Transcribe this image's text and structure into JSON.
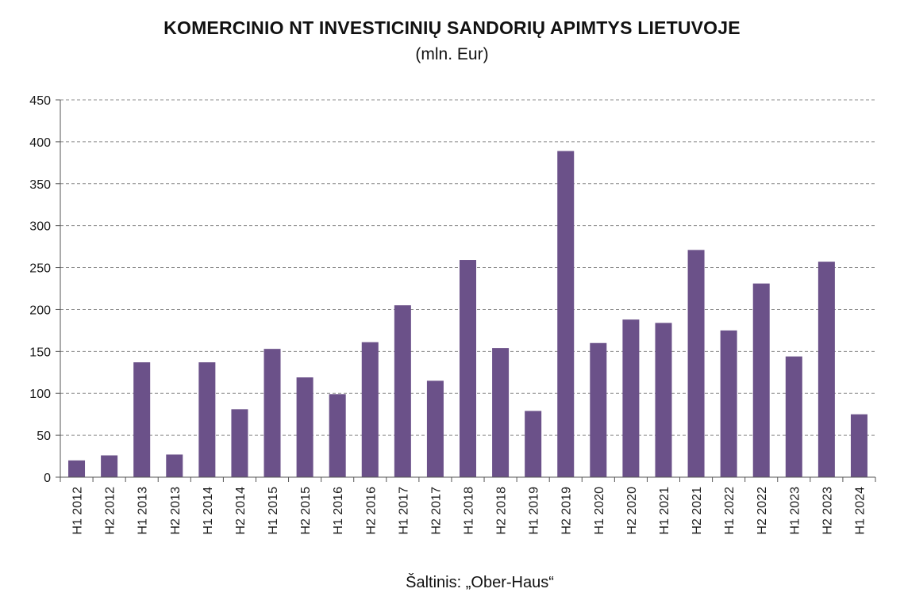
{
  "chart_data": {
    "type": "bar",
    "title": "KOMERCINIO NT INVESTICINIŲ SANDORIŲ APIMTYS LIETUVOJE",
    "subtitle": "(mln. Eur)",
    "xlabel": "",
    "ylabel": "",
    "ylim": [
      0,
      450
    ],
    "yticks": [
      0,
      50,
      100,
      150,
      200,
      250,
      300,
      350,
      400,
      450
    ],
    "grid": true,
    "legend": "none",
    "bar_color": "#6b5189",
    "categories": [
      "H1 2012",
      "H2 2012",
      "H1 2013",
      "H2 2013",
      "H1 2014",
      "H2 2014",
      "H1 2015",
      "H2 2015",
      "H1 2016",
      "H2 2016",
      "H1 2017",
      "H2 2017",
      "H1 2018",
      "H2 2018",
      "H1 2019",
      "H2 2019",
      "H1 2020",
      "H2 2020",
      "H1 2021",
      "H2 2021",
      "H1 2022",
      "H2 2022",
      "H1 2023",
      "H2 2023",
      "H1 2024"
    ],
    "values": [
      20,
      26,
      137,
      27,
      137,
      81,
      153,
      119,
      99,
      161,
      205,
      115,
      259,
      154,
      79,
      389,
      160,
      188,
      184,
      271,
      175,
      231,
      144,
      257,
      75
    ]
  },
  "source": "Šaltinis: „Ober-Haus“"
}
